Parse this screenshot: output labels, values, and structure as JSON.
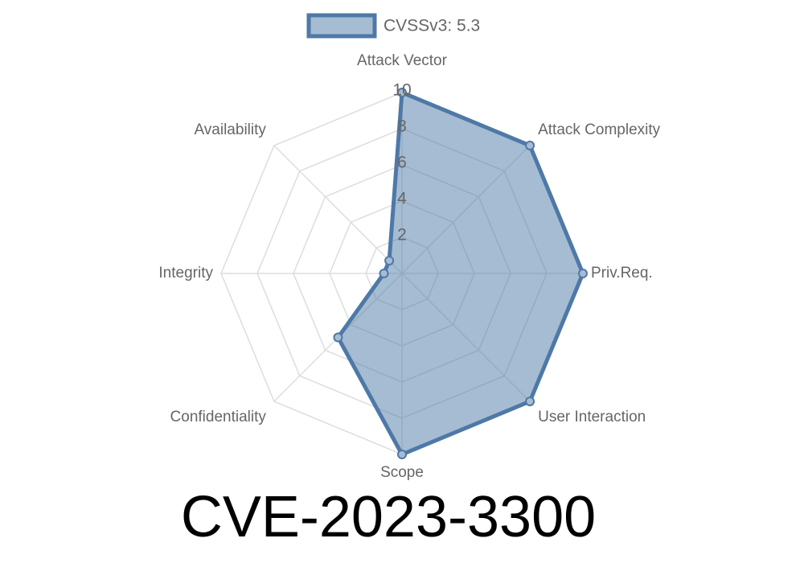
{
  "chart_data": {
    "type": "radar",
    "title": "CVE-2023-3300",
    "categories": [
      "Attack Vector",
      "Attack Complexity",
      "Priv.Req.",
      "User Interaction",
      "Scope",
      "Confidentiality",
      "Integrity",
      "Availability"
    ],
    "series": [
      {
        "name": "CVSSv3: 5.3",
        "color": "#4e79a7",
        "values": [
          10,
          10,
          10,
          10,
          10,
          5,
          1,
          1
        ]
      }
    ],
    "rlim": [
      0,
      10
    ],
    "rticks": [
      2,
      4,
      6,
      8,
      10
    ],
    "grid": true,
    "legend": "top"
  }
}
